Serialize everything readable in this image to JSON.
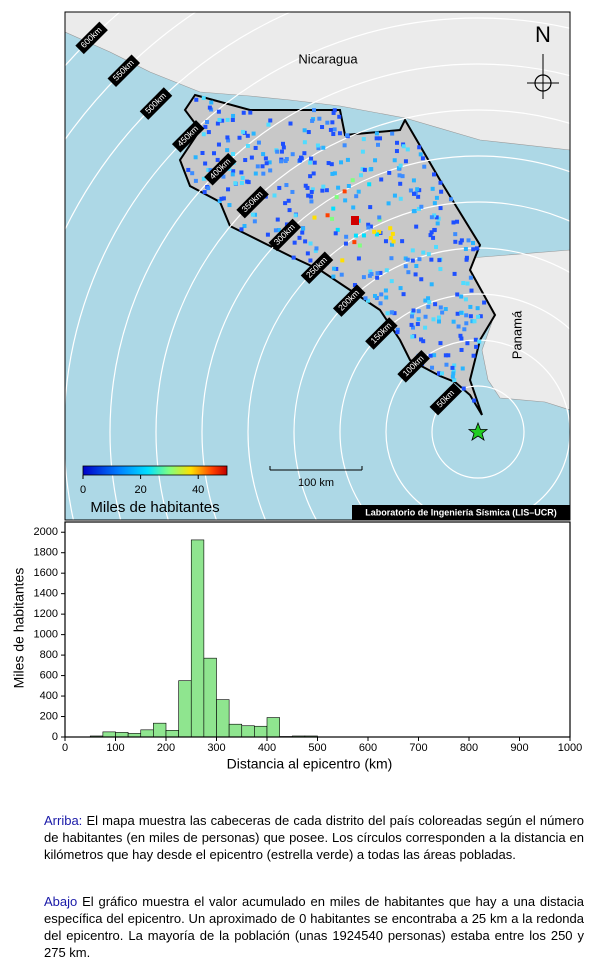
{
  "map": {
    "country_labels": [
      "Nicaragua",
      "Panamá"
    ],
    "north": "N",
    "ring_labels": [
      "50km",
      "100km",
      "150km",
      "200km",
      "250km",
      "300km",
      "350km",
      "400km",
      "450km",
      "500km",
      "550km",
      "600km"
    ],
    "colorbar": {
      "label": "Miles de habitantes",
      "lim": [
        0,
        50
      ],
      "ticks": [
        0,
        20,
        40
      ]
    },
    "scale_bar": "100 km",
    "credit": "Laboratorio de Ingeniería Sísmica (LIS–UCR)"
  },
  "chart_data": {
    "type": "histogram",
    "xlabel": "Distancia al epicentro (km)",
    "ylabel": "Miles de habitantes",
    "bins": [
      50,
      75,
      100,
      125,
      150,
      175,
      200,
      225,
      250,
      275,
      300,
      325,
      350,
      375,
      400,
      425,
      450,
      475,
      500
    ],
    "values": [
      10,
      50,
      45,
      35,
      70,
      135,
      65,
      550,
      1925,
      770,
      365,
      125,
      110,
      105,
      190,
      5,
      10,
      10
    ],
    "color": "#8fe58f",
    "xlim": [
      0,
      1000
    ],
    "xticks": [
      0,
      100,
      200,
      300,
      400,
      500,
      600,
      700,
      800,
      900,
      1000
    ],
    "ylim": [
      0,
      2100
    ],
    "yticks": [
      0,
      200,
      400,
      600,
      800,
      1000,
      1200,
      1400,
      1600,
      1800,
      2000
    ]
  },
  "caption": {
    "top_lead": "Arriba:",
    "top_text": "El mapa muestra las cabeceras de cada distrito del país coloreadas según el número de habitantes (en miles de personas) que posee.  Los círculos corresponden a la distancia en kilómetros que hay desde el epicentro (estrella verde) a todas las áreas pobladas.",
    "bottom_lead": "Abajo",
    "bottom_text": "El gráfico muestra el valor acumulado en miles de habitantes que hay a una distacia específica del epicentro.  Un aproximado de 0 habitantes se encontraba a 25 km a la redonda del epicentro.  La mayoría de la población (unas 1924540 personas) estaba entre los 250 y 275 km."
  }
}
